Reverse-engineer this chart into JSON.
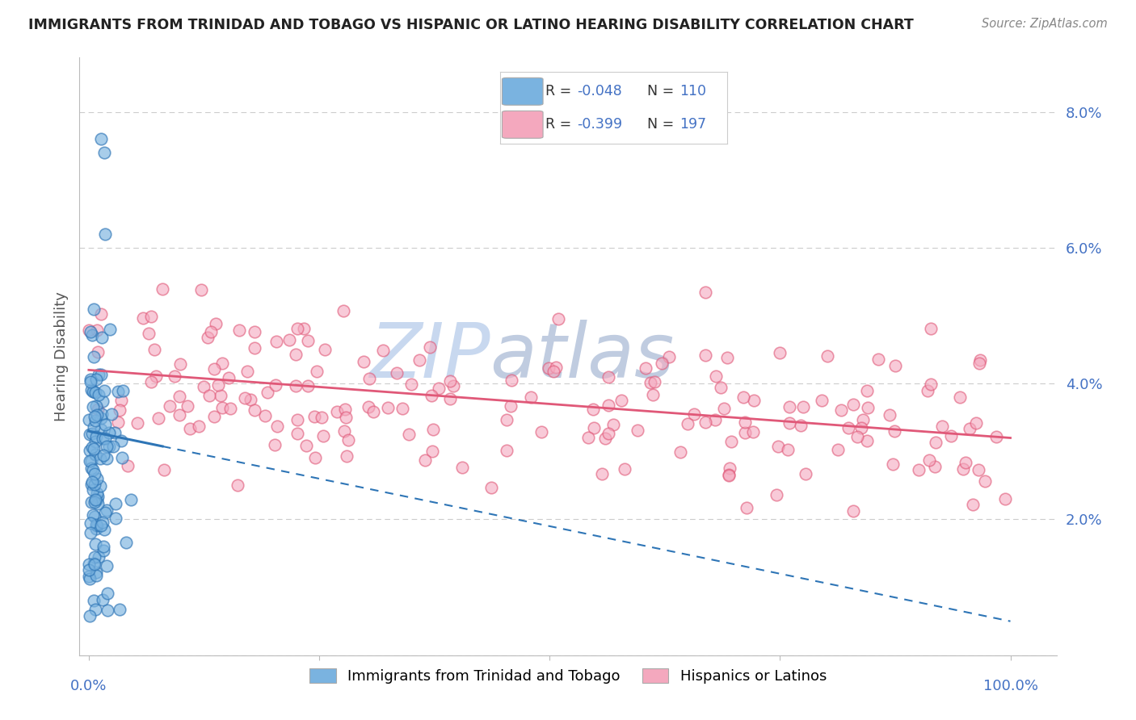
{
  "title": "IMMIGRANTS FROM TRINIDAD AND TOBAGO VS HISPANIC OR LATINO HEARING DISABILITY CORRELATION CHART",
  "source": "Source: ZipAtlas.com",
  "ylabel": "Hearing Disability",
  "legend_blue_label": "Immigrants from Trinidad and Tobago",
  "legend_pink_label": "Hispanics or Latinos",
  "blue_color": "#7ab3e0",
  "pink_color": "#f4a8be",
  "blue_line_color": "#2e75b6",
  "pink_line_color": "#e05878",
  "title_color": "#222222",
  "axis_label_color": "#4472c4",
  "watermark_zip_color": "#c8d8ef",
  "watermark_atlas_color": "#c0cce0",
  "background_color": "#ffffff",
  "grid_color": "#cccccc",
  "ymin": 0.0,
  "ymax": 0.088,
  "xmin": -0.01,
  "xmax": 1.05,
  "ytick_vals": [
    0.0,
    0.02,
    0.04,
    0.06,
    0.08
  ],
  "ytick_labels": [
    "",
    "2.0%",
    "4.0%",
    "6.0%",
    "8.0%"
  ],
  "blue_n": 110,
  "pink_n": 197,
  "legend_R_color": "#333333",
  "legend_val_color": "#4472c4"
}
